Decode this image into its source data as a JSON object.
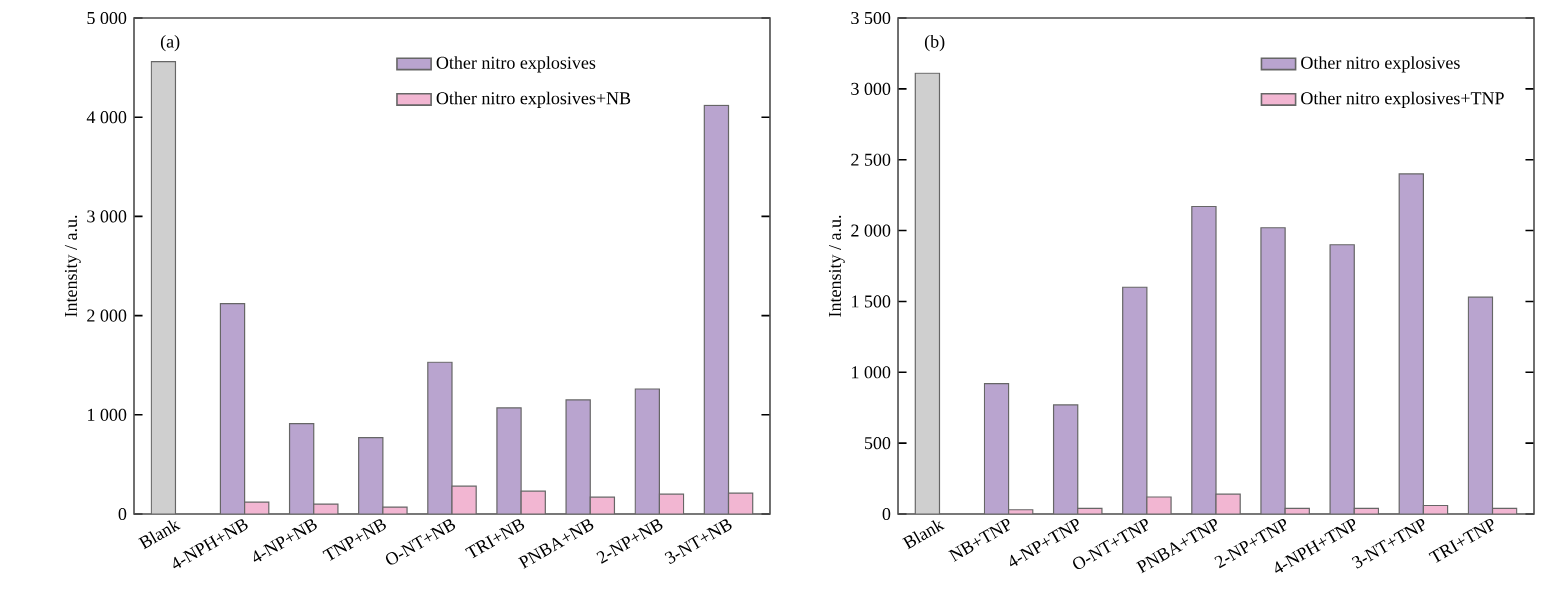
{
  "chart_data": [
    {
      "type": "bar",
      "ylabel": "Intensity / a.u.",
      "annotations": [
        "(a)"
      ],
      "legend": "top",
      "categories": [
        "Blank",
        "4-NPH+NB",
        "4-NP+NB",
        "TNP+NB",
        "O-NT+NB",
        "TRI+NB",
        "PNBA+NB",
        "2-NP+NB",
        "3-NT+NB"
      ],
      "ylim": [
        0,
        5000
      ],
      "yticks": [
        0,
        {
          "value": 1000,
          "label": "1 000"
        },
        {
          "value": 2000,
          "label": "2 000"
        },
        {
          "value": 3000,
          "label": "3 000"
        },
        {
          "value": 4000,
          "label": "4 000"
        },
        {
          "value": 5000,
          "label": "5 000"
        }
      ],
      "series": [
        {
          "name": "Other nitro explosives",
          "color": "#b9a4cf",
          "colors": [
            "#cfcfcf",
            "#b9a4cf",
            "#b9a4cf",
            "#b9a4cf",
            "#b9a4cf",
            "#b9a4cf",
            "#b9a4cf",
            "#b9a4cf",
            "#b9a4cf"
          ],
          "values": [
            4560,
            2120,
            910,
            770,
            1530,
            1070,
            1150,
            1260,
            4120
          ]
        },
        {
          "name": "Other nitro explosives+NB",
          "color": "#f2b6d2",
          "values": [
            null,
            120,
            100,
            70,
            280,
            230,
            170,
            200,
            210
          ]
        }
      ]
    },
    {
      "type": "bar",
      "ylabel": "Intensity / a.u.",
      "annotations": [
        "(b)"
      ],
      "legend": "top right",
      "categories": [
        "Blank",
        "NB+TNP",
        "4-NP+TNP",
        "O-NT+TNP",
        "PNBA+TNP",
        "2-NP+TNP",
        "4-NPH+TNP",
        "3-NT+TNP",
        "TRI+TNP"
      ],
      "ylim": [
        0,
        3500
      ],
      "yticks": [
        0,
        500,
        {
          "value": 1000,
          "label": "1 000"
        },
        {
          "value": 1500,
          "label": "1 500"
        },
        {
          "value": 2000,
          "label": "2 000"
        },
        {
          "value": 2500,
          "label": "2 500"
        },
        {
          "value": 3000,
          "label": "3 000"
        },
        {
          "value": 3500,
          "label": "3 500"
        }
      ],
      "series": [
        {
          "name": "Other nitro explosives",
          "color": "#b9a4cf",
          "colors": [
            "#cfcfcf",
            "#b9a4cf",
            "#b9a4cf",
            "#b9a4cf",
            "#b9a4cf",
            "#b9a4cf",
            "#b9a4cf",
            "#b9a4cf",
            "#b9a4cf"
          ],
          "values": [
            3110,
            920,
            770,
            1600,
            2170,
            2020,
            1900,
            2400,
            1530
          ]
        },
        {
          "name": "Other nitro explosives+TNP",
          "color": "#f2b6d2",
          "values": [
            null,
            30,
            40,
            120,
            140,
            40,
            40,
            60,
            40
          ]
        }
      ]
    }
  ]
}
